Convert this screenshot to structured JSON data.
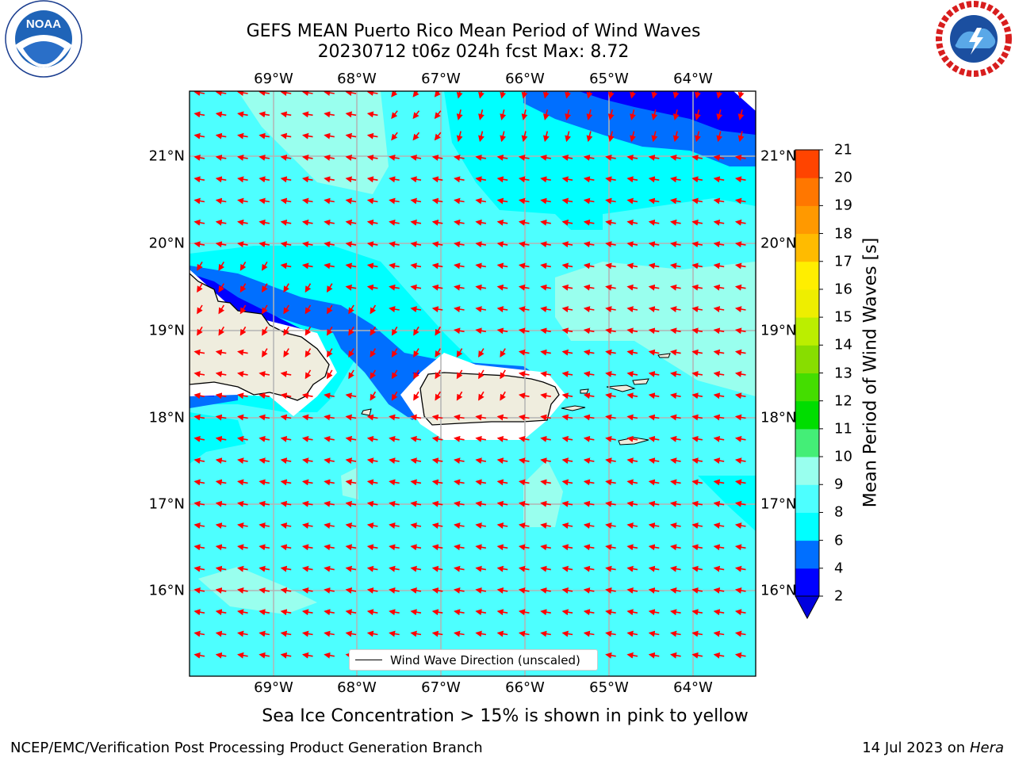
{
  "title_line1": "GEFS MEAN Puerto Rico Mean Period of Wind Waves",
  "title_line2": "20230712 t06z 024h fcst   Max: 8.72",
  "map": {
    "lon_ticks": [
      "69°W",
      "68°W",
      "67°W",
      "66°W",
      "65°W",
      "64°W"
    ],
    "lat_ticks": [
      "21°N",
      "20°N",
      "19°N",
      "18°N",
      "17°N",
      "16°N"
    ],
    "grid": true,
    "legend_label": "Wind Wave Direction (unscaled)",
    "arrow_color": "#ff0000",
    "land_color": "#efedde"
  },
  "colorbar": {
    "title": "Mean Period of Wind Waves [s]",
    "levels": [
      "2",
      "4",
      "6",
      "8",
      "9",
      "10",
      "11",
      "12",
      "13",
      "14",
      "15",
      "16",
      "17",
      "18",
      "19",
      "20",
      "21"
    ],
    "colors": [
      "#0000ff",
      "#006fff",
      "#00ffff",
      "#4dffff",
      "#99ffee",
      "#44ee77",
      "#00dd00",
      "#44dd00",
      "#88dd00",
      "#bbee00",
      "#eeee00",
      "#ffee00",
      "#ffbb00",
      "#ff9900",
      "#ff7700",
      "#ff4400",
      "#ff0000"
    ],
    "extend_min_color": "#0000dd"
  },
  "note": "Sea Ice Concentration > 15% is shown in pink to yellow",
  "footer_left": "NCEP/EMC/Verification Post Processing Product Generation Branch",
  "footer_right_prefix": "14 Jul 2023 on ",
  "footer_right_machine": "Hera",
  "logos": [
    "noaa-logo",
    "nws-logo"
  ]
}
